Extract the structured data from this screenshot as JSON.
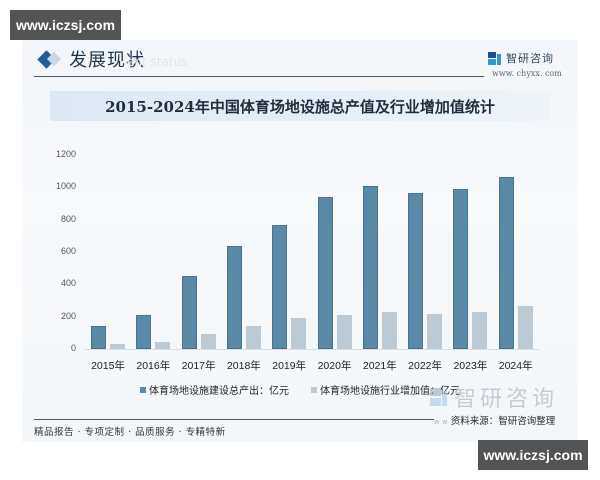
{
  "watermarks": {
    "top": "www.iczsj.com",
    "bottom": "www.iczsj.com",
    "center": "智研咨询"
  },
  "section": {
    "title": "发展现状",
    "subtitle": "ent status"
  },
  "brand": {
    "name": "智研咨询",
    "url": "www. chyxx. com"
  },
  "footer": {
    "source_prefix": "w w",
    "source": "资料来源：智研咨询整理",
    "slogan": "精品报告 · 专项定制 · 品质服务 · 专精特新"
  },
  "colors": {
    "series1": "#5a8aa8",
    "series2": "#bccad6",
    "accent": "#1f5f99"
  },
  "chart_data": {
    "type": "bar",
    "title": "2015-2024年中国体育场地设施总产值及行业增加值统计",
    "xlabel": "",
    "ylabel": "",
    "ylim": [
      0,
      1200
    ],
    "yticks": [
      0,
      200,
      400,
      600,
      800,
      1000,
      1200
    ],
    "grid": false,
    "legend_position": "bottom",
    "categories": [
      "2015年",
      "2016年",
      "2017年",
      "2018年",
      "2019年",
      "2020年",
      "2021年",
      "2022年",
      "2023年",
      "2024年"
    ],
    "series": [
      {
        "name": "体育场地设施建设总产出：亿元",
        "color": "#5a8aa8",
        "values": [
          145,
          213,
          454,
          637,
          768,
          939,
          1005,
          965,
          990,
          1062
        ]
      },
      {
        "name": "体育场地设施行业增加值：亿元",
        "color": "#bccad6",
        "values": [
          31,
          47,
          92,
          142,
          193,
          209,
          228,
          218,
          228,
          265
        ]
      }
    ]
  }
}
